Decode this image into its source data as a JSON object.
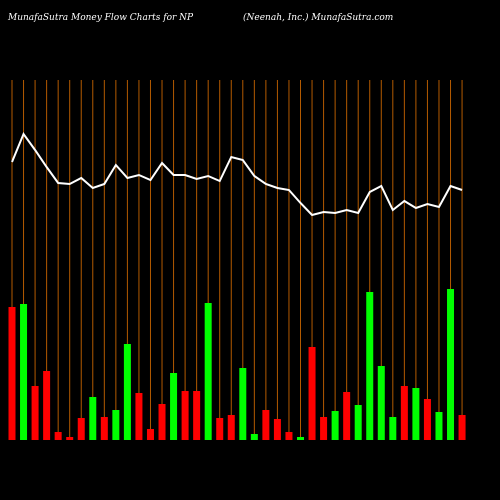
{
  "chart_data": {
    "type": "bar",
    "title": "MunafaSutra  Money Flow  Charts for NP",
    "subtitle": "(Neenah,  Inc.) MunafaSutra.com",
    "categories": [
      null,
      null,
      null,
      null,
      null,
      null,
      null,
      null,
      null,
      null,
      null,
      null,
      null,
      null,
      null,
      null,
      null,
      null,
      null,
      null,
      null,
      null,
      null,
      null,
      null,
      null,
      null,
      null,
      null,
      null,
      null,
      null,
      null,
      null,
      null,
      null,
      null,
      null,
      null,
      null
    ],
    "values": [
      133,
      136,
      54,
      69,
      8,
      3,
      22,
      43,
      23,
      30,
      96,
      47,
      11,
      36,
      67,
      49,
      49,
      137,
      22,
      25,
      72,
      6,
      30,
      21,
      8,
      3,
      93,
      23,
      29,
      48,
      35,
      148,
      74,
      23,
      54,
      52,
      41,
      28,
      151,
      25
    ],
    "colors": [
      "#ff0000",
      "#00ff00",
      "#ff0000",
      "#ff0000",
      "#ff0000",
      "#ff0000",
      "#ff0000",
      "#00ff00",
      "#ff0000",
      "#00ff00",
      "#00ff00",
      "#ff0000",
      "#ff0000",
      "#ff0000",
      "#00ff00",
      "#ff0000",
      "#ff0000",
      "#00ff00",
      "#ff0000",
      "#ff0000",
      "#00ff00",
      "#00ff00",
      "#ff0000",
      "#ff0000",
      "#ff0000",
      "#00ff00",
      "#ff0000",
      "#ff0000",
      "#00ff00",
      "#ff0000",
      "#00ff00",
      "#00ff00",
      "#00ff00",
      "#00ff00",
      "#ff0000",
      "#00ff00",
      "#ff0000",
      "#00ff00",
      "#00ff00",
      "#ff0000"
    ],
    "line": {
      "color": "#ffffff",
      "values": [
        278,
        306,
        290,
        273,
        257,
        256,
        262,
        252,
        256,
        275,
        262,
        265,
        260,
        277,
        265,
        265,
        261,
        264,
        259,
        283,
        280,
        264,
        256,
        252,
        250,
        237,
        225,
        228,
        227,
        230,
        227,
        248,
        254,
        230,
        239,
        232,
        236,
        233,
        254,
        250
      ]
    },
    "ylim": [
      0,
      360
    ]
  }
}
